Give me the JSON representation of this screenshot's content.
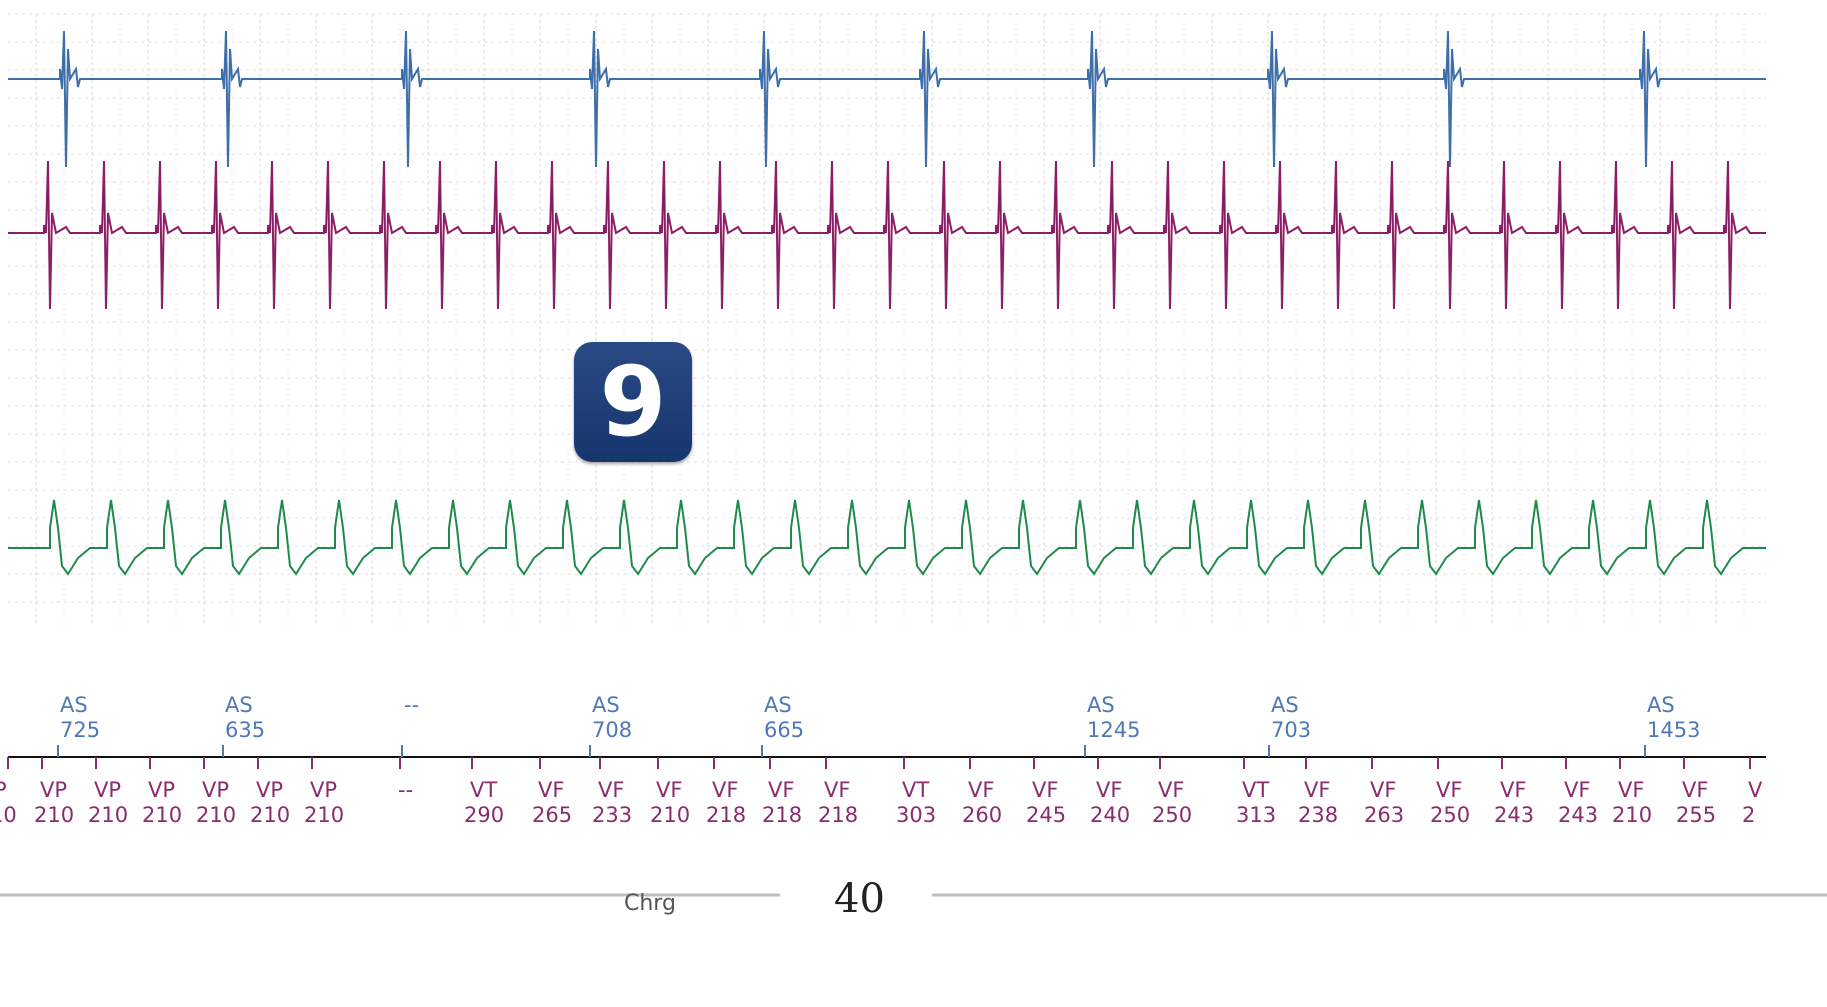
{
  "strip": {
    "colors": {
      "atrial_egm": "#3f6fa8",
      "ventricular_egm": "#8b1f65",
      "shock_egm": "#1f8a4c",
      "grid": "#d8d8d8",
      "atrial_marker": "#4f78b6",
      "ventricular_marker": "#8a2c6e"
    },
    "atrial_markers": [
      {
        "label": "AS",
        "interval": "725"
      },
      {
        "label": "AS",
        "interval": "635"
      },
      {
        "label": "--",
        "interval": ""
      },
      {
        "label": "AS",
        "interval": "708"
      },
      {
        "label": "AS",
        "interval": "665"
      },
      {
        "label": "AS",
        "interval": "1245"
      },
      {
        "label": "AS",
        "interval": "703"
      },
      {
        "label": "AS",
        "interval": "1453"
      }
    ],
    "ventricular_markers": [
      {
        "label": "P",
        "interval": "10"
      },
      {
        "label": "VP",
        "interval": "210"
      },
      {
        "label": "VP",
        "interval": "210"
      },
      {
        "label": "VP",
        "interval": "210"
      },
      {
        "label": "VP",
        "interval": "210"
      },
      {
        "label": "VP",
        "interval": "210"
      },
      {
        "label": "VP",
        "interval": "210"
      },
      {
        "label": "--",
        "interval": ""
      },
      {
        "label": "VT",
        "interval": "290"
      },
      {
        "label": "VF",
        "interval": "265"
      },
      {
        "label": "VF",
        "interval": "233"
      },
      {
        "label": "VF",
        "interval": "210"
      },
      {
        "label": "VF",
        "interval": "218"
      },
      {
        "label": "VF",
        "interval": "218"
      },
      {
        "label": "VF",
        "interval": "218"
      },
      {
        "label": "VT",
        "interval": "303"
      },
      {
        "label": "VF",
        "interval": "260"
      },
      {
        "label": "VF",
        "interval": "245"
      },
      {
        "label": "VF",
        "interval": "240"
      },
      {
        "label": "VF",
        "interval": "250"
      },
      {
        "label": "VT",
        "interval": "313"
      },
      {
        "label": "VF",
        "interval": "238"
      },
      {
        "label": "VF",
        "interval": "263"
      },
      {
        "label": "VF",
        "interval": "250"
      },
      {
        "label": "VF",
        "interval": "243"
      },
      {
        "label": "VF",
        "interval": "243"
      },
      {
        "label": "VF",
        "interval": "210"
      },
      {
        "label": "VF",
        "interval": "255"
      },
      {
        "label": "V",
        "interval": "2"
      }
    ],
    "charge_label": "Chrg"
  },
  "figure_badge": "9",
  "page_number": "40"
}
